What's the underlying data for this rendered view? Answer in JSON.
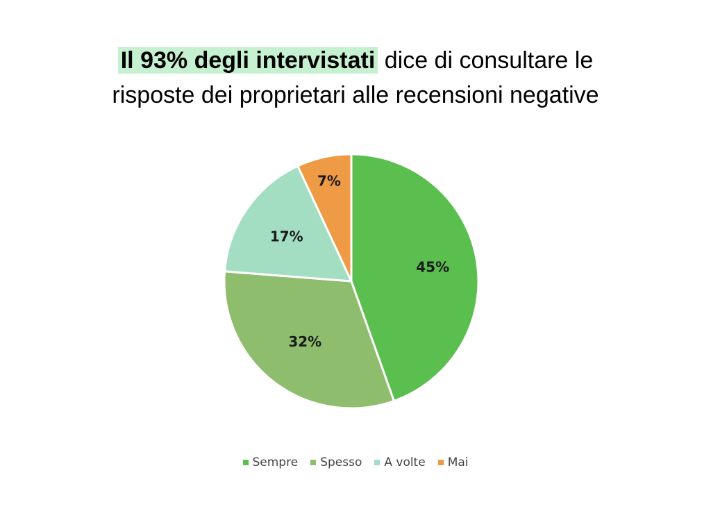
{
  "header": {
    "highlight": "Il 93% degli intervistati",
    "line1_rest": " dice di consultare le",
    "line2": "risposte dei proprietari alle recensioni negative",
    "highlight_color": "#c6f1d0"
  },
  "chart_data": {
    "type": "pie",
    "title": "",
    "categories": [
      "Sempre",
      "Spesso",
      "A volte",
      "Mai"
    ],
    "values": [
      45,
      32,
      17,
      7
    ],
    "labels": [
      "45%",
      "32%",
      "17%",
      "7%"
    ],
    "colors": [
      "#5bbf4f",
      "#8ebd6d",
      "#a3dec3",
      "#ef9a45"
    ],
    "legend_position": "bottom",
    "start_angle": "12 o'clock",
    "direction": "clockwise"
  }
}
